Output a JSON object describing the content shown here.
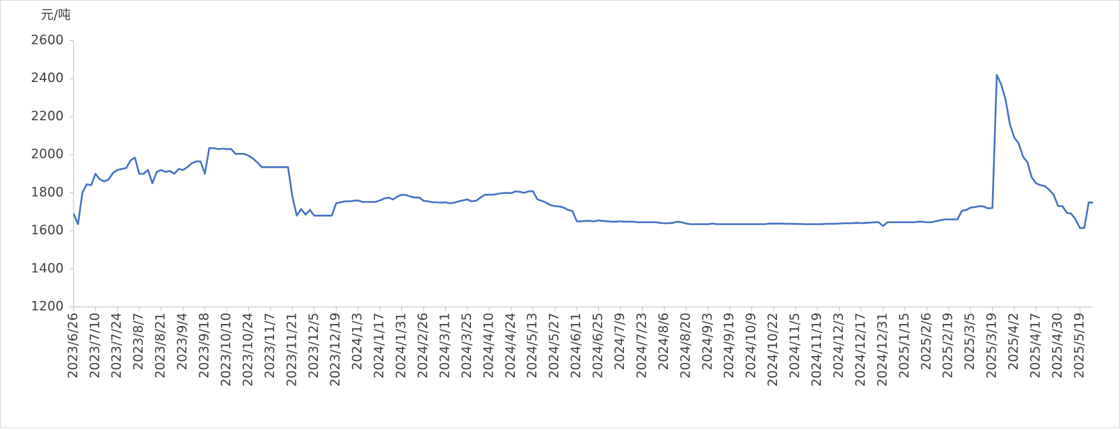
{
  "chart_data": {
    "type": "line",
    "unit_label": "元/吨",
    "ylim": [
      1200,
      2600
    ],
    "yticks": [
      1200,
      1400,
      1600,
      1800,
      2000,
      2200,
      2400,
      2600
    ],
    "categories": [
      "2023/6/26",
      null,
      null,
      null,
      null,
      "2023/7/10",
      null,
      null,
      null,
      null,
      "2023/7/24",
      null,
      null,
      null,
      null,
      "2023/8/7",
      null,
      null,
      null,
      null,
      "2023/8/21",
      null,
      null,
      null,
      null,
      "2023/9/4",
      null,
      null,
      null,
      null,
      "2023/9/18",
      null,
      null,
      null,
      null,
      "2023/10/10",
      null,
      null,
      null,
      null,
      "2023/10/24",
      null,
      null,
      null,
      null,
      "2023/11/7",
      null,
      null,
      null,
      null,
      "2023/11/21",
      null,
      null,
      null,
      null,
      "2023/12/5",
      null,
      null,
      null,
      null,
      "2023/12/19",
      null,
      null,
      null,
      null,
      "2024/1/3",
      null,
      null,
      null,
      null,
      "2024/1/17",
      null,
      null,
      null,
      null,
      "2024/1/31",
      null,
      null,
      null,
      null,
      "2024/2/26",
      null,
      null,
      null,
      null,
      "2024/3/11",
      null,
      null,
      null,
      null,
      "2024/3/25",
      null,
      null,
      null,
      null,
      "2024/4/10",
      null,
      null,
      null,
      null,
      "2024/4/24",
      null,
      null,
      null,
      null,
      "2024/5/13",
      null,
      null,
      null,
      null,
      "2024/5/27",
      null,
      null,
      null,
      null,
      "2024/6/11",
      null,
      null,
      null,
      null,
      "2024/6/25",
      null,
      null,
      null,
      null,
      "2024/7/9",
      null,
      null,
      null,
      null,
      "2024/7/23",
      null,
      null,
      null,
      null,
      "2024/8/6",
      null,
      null,
      null,
      null,
      "2024/8/20",
      null,
      null,
      null,
      null,
      "2024/9/3",
      null,
      null,
      null,
      null,
      "2024/9/19",
      null,
      null,
      null,
      null,
      "2024/10/9",
      null,
      null,
      null,
      null,
      "2024/10/22",
      null,
      null,
      null,
      null,
      "2024/11/5",
      null,
      null,
      null,
      null,
      "2024/11/19",
      null,
      null,
      null,
      null,
      "2024/12/3",
      null,
      null,
      null,
      null,
      "2024/12/17",
      null,
      null,
      null,
      null,
      "2024/12/31",
      null,
      null,
      null,
      null,
      "2025/1/15",
      null,
      null,
      null,
      null,
      "2025/2/6",
      null,
      null,
      null,
      null,
      "2025/2/19",
      null,
      null,
      null,
      null,
      "2025/3/5",
      null,
      null,
      null,
      null,
      "2025/3/19",
      null,
      null,
      null,
      null,
      "2025/4/2",
      null,
      null,
      null,
      null,
      "2025/4/17",
      null,
      null,
      null,
      null,
      "2025/4/30",
      null,
      null,
      null,
      null,
      "2025/5/19",
      null,
      null,
      null
    ],
    "series": [
      {
        "color": "#4472c4",
        "values": [
          1690,
          1635,
          1800,
          1845,
          1840,
          1900,
          1870,
          1860,
          1870,
          1905,
          1920,
          1925,
          1930,
          1970,
          1985,
          1900,
          1900,
          1920,
          1850,
          1910,
          1920,
          1910,
          1915,
          1900,
          1925,
          1920,
          1935,
          1955,
          1965,
          1965,
          1900,
          2035,
          2035,
          2030,
          2032,
          2030,
          2030,
          2005,
          2005,
          2005,
          1995,
          1980,
          1960,
          1935,
          1935,
          1935,
          1935,
          1935,
          1935,
          1935,
          1780,
          1680,
          1715,
          1685,
          1710,
          1680,
          1680,
          1680,
          1680,
          1680,
          1745,
          1750,
          1755,
          1755,
          1758,
          1760,
          1752,
          1752,
          1752,
          1752,
          1760,
          1770,
          1775,
          1765,
          1780,
          1790,
          1788,
          1780,
          1775,
          1775,
          1758,
          1755,
          1750,
          1750,
          1748,
          1750,
          1745,
          1748,
          1755,
          1760,
          1765,
          1755,
          1758,
          1775,
          1790,
          1790,
          1790,
          1795,
          1798,
          1800,
          1798,
          1808,
          1805,
          1800,
          1808,
          1808,
          1765,
          1758,
          1748,
          1735,
          1730,
          1728,
          1722,
          1710,
          1705,
          1650,
          1650,
          1652,
          1652,
          1650,
          1655,
          1652,
          1650,
          1648,
          1648,
          1650,
          1648,
          1648,
          1648,
          1645,
          1645,
          1645,
          1645,
          1645,
          1642,
          1640,
          1640,
          1642,
          1648,
          1645,
          1638,
          1635,
          1635,
          1635,
          1635,
          1635,
          1638,
          1635,
          1635,
          1635,
          1635,
          1635,
          1635,
          1635,
          1635,
          1635,
          1635,
          1635,
          1635,
          1638,
          1638,
          1638,
          1638,
          1637,
          1637,
          1636,
          1636,
          1635,
          1635,
          1635,
          1635,
          1635,
          1637,
          1637,
          1637,
          1638,
          1640,
          1640,
          1640,
          1642,
          1640,
          1642,
          1643,
          1645,
          1645,
          1625,
          1645,
          1645,
          1645,
          1645,
          1645,
          1645,
          1645,
          1648,
          1648,
          1645,
          1645,
          1650,
          1655,
          1660,
          1660,
          1660,
          1660,
          1705,
          1710,
          1722,
          1725,
          1730,
          1728,
          1718,
          1720,
          2420,
          2370,
          2290,
          2160,
          2090,
          2060,
          1990,
          1960,
          1880,
          1850,
          1840,
          1835,
          1815,
          1790,
          1730,
          1730,
          1695,
          1690,
          1660,
          1615,
          1615,
          1750,
          1748
        ]
      }
    ]
  }
}
